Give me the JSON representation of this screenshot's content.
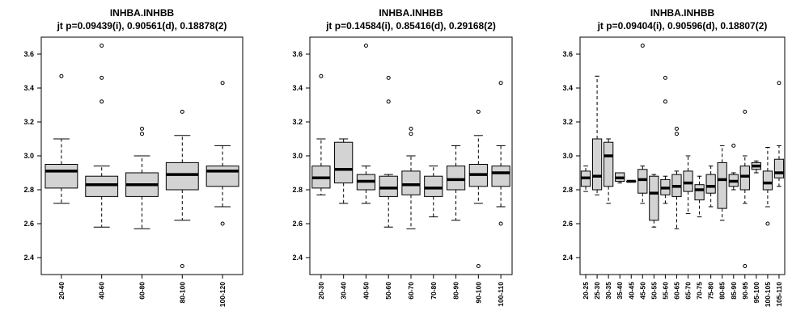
{
  "colors": {
    "box_fill": "#d3d3d3",
    "stroke": "#000000",
    "background": "#ffffff"
  },
  "chart_data": [
    {
      "type": "boxplot",
      "title": "INHBA.INHBB",
      "subtitle": "jt p=0.09439(i), 0.90561(d), 0.18878(2)",
      "ylim": [
        2.3,
        3.7
      ],
      "yticks": [
        "2.4",
        "2.6",
        "2.8",
        "3.0",
        "3.2",
        "3.4",
        "3.6"
      ],
      "categories": [
        "20-40",
        "40-60",
        "60-80",
        "80-100",
        "100-120"
      ],
      "boxes": [
        {
          "whisker_low": 2.72,
          "q1": 2.81,
          "median": 2.91,
          "q3": 2.95,
          "whisker_high": 3.1,
          "outliers": [
            3.47
          ]
        },
        {
          "whisker_low": 2.58,
          "q1": 2.76,
          "median": 2.83,
          "q3": 2.88,
          "whisker_high": 2.94,
          "outliers": [
            3.65,
            3.46,
            3.32
          ]
        },
        {
          "whisker_low": 2.57,
          "q1": 2.76,
          "median": 2.83,
          "q3": 2.9,
          "whisker_high": 3.0,
          "outliers": [
            3.16,
            3.13
          ]
        },
        {
          "whisker_low": 2.62,
          "q1": 2.8,
          "median": 2.89,
          "q3": 2.96,
          "whisker_high": 3.12,
          "outliers": [
            3.26,
            2.35
          ]
        },
        {
          "whisker_low": 2.7,
          "q1": 2.82,
          "median": 2.91,
          "q3": 2.94,
          "whisker_high": 3.06,
          "outliers": [
            3.43,
            2.6
          ]
        }
      ]
    },
    {
      "type": "boxplot",
      "title": "INHBA.INHBB",
      "subtitle": "jt p=0.14584(i), 0.85416(d), 0.29168(2)",
      "ylim": [
        2.3,
        3.7
      ],
      "yticks": [
        "2.4",
        "2.6",
        "2.8",
        "3.0",
        "3.2",
        "3.4",
        "3.6"
      ],
      "categories": [
        "20-30",
        "30-40",
        "40-50",
        "50-60",
        "60-70",
        "70-80",
        "80-90",
        "90-100",
        "100-110"
      ],
      "boxes": [
        {
          "whisker_low": 2.77,
          "q1": 2.81,
          "median": 2.87,
          "q3": 2.94,
          "whisker_high": 3.1,
          "outliers": [
            3.47
          ]
        },
        {
          "whisker_low": 2.72,
          "q1": 2.84,
          "median": 2.92,
          "q3": 3.08,
          "whisker_high": 3.1,
          "outliers": []
        },
        {
          "whisker_low": 2.72,
          "q1": 2.8,
          "median": 2.85,
          "q3": 2.89,
          "whisker_high": 2.94,
          "outliers": [
            3.65
          ]
        },
        {
          "whisker_low": 2.58,
          "q1": 2.76,
          "median": 2.81,
          "q3": 2.88,
          "whisker_high": 2.89,
          "outliers": [
            3.46,
            3.32
          ]
        },
        {
          "whisker_low": 2.57,
          "q1": 2.77,
          "median": 2.83,
          "q3": 2.91,
          "whisker_high": 3.0,
          "outliers": [
            3.16,
            3.13
          ]
        },
        {
          "whisker_low": 2.64,
          "q1": 2.76,
          "median": 2.81,
          "q3": 2.88,
          "whisker_high": 2.94,
          "outliers": []
        },
        {
          "whisker_low": 2.62,
          "q1": 2.8,
          "median": 2.86,
          "q3": 2.94,
          "whisker_high": 3.06,
          "outliers": []
        },
        {
          "whisker_low": 2.72,
          "q1": 2.82,
          "median": 2.89,
          "q3": 2.95,
          "whisker_high": 3.12,
          "outliers": [
            3.26,
            2.35
          ]
        },
        {
          "whisker_low": 2.7,
          "q1": 2.82,
          "median": 2.9,
          "q3": 2.94,
          "whisker_high": 3.06,
          "outliers": [
            3.43,
            2.6
          ]
        }
      ]
    },
    {
      "type": "boxplot",
      "title": "INHBA.INHBB",
      "subtitle": "jt p=0.09404(i), 0.90596(d), 0.18807(2)",
      "ylim": [
        2.3,
        3.7
      ],
      "yticks": [
        "2.4",
        "2.6",
        "2.8",
        "3.0",
        "3.2",
        "3.4",
        "3.6"
      ],
      "categories": [
        "20-25",
        "25-30",
        "30-35",
        "35-40",
        "40-45",
        "45-50",
        "50-55",
        "55-60",
        "60-65",
        "65-70",
        "70-75",
        "75-80",
        "80-85",
        "85-90",
        "90-95",
        "95-100",
        "100-105",
        "105-110"
      ],
      "boxes": [
        {
          "whisker_low": 2.79,
          "q1": 2.82,
          "median": 2.87,
          "q3": 2.91,
          "whisker_high": 2.94,
          "outliers": []
        },
        {
          "whisker_low": 2.77,
          "q1": 2.8,
          "median": 2.88,
          "q3": 3.1,
          "whisker_high": 3.47,
          "outliers": []
        },
        {
          "whisker_low": 2.72,
          "q1": 2.82,
          "median": 3.0,
          "q3": 3.08,
          "whisker_high": 3.1,
          "outliers": []
        },
        {
          "whisker_low": 2.84,
          "q1": 2.85,
          "median": 2.87,
          "q3": 2.9,
          "whisker_high": 2.9,
          "outliers": []
        },
        {
          "whisker_low": 2.85,
          "q1": 2.85,
          "median": 2.85,
          "q3": 2.85,
          "whisker_high": 2.85,
          "outliers": []
        },
        {
          "whisker_low": 2.72,
          "q1": 2.78,
          "median": 2.86,
          "q3": 2.92,
          "whisker_high": 2.94,
          "outliers": [
            3.65
          ]
        },
        {
          "whisker_low": 2.58,
          "q1": 2.62,
          "median": 2.78,
          "q3": 2.88,
          "whisker_high": 2.89,
          "outliers": []
        },
        {
          "whisker_low": 2.72,
          "q1": 2.77,
          "median": 2.81,
          "q3": 2.86,
          "whisker_high": 2.88,
          "outliers": [
            3.46,
            3.32
          ]
        },
        {
          "whisker_low": 2.57,
          "q1": 2.76,
          "median": 2.82,
          "q3": 2.89,
          "whisker_high": 2.91,
          "outliers": [
            3.16,
            3.13
          ]
        },
        {
          "whisker_low": 2.66,
          "q1": 2.79,
          "median": 2.84,
          "q3": 2.91,
          "whisker_high": 3.0,
          "outliers": []
        },
        {
          "whisker_low": 2.64,
          "q1": 2.74,
          "median": 2.8,
          "q3": 2.83,
          "whisker_high": 2.88,
          "outliers": []
        },
        {
          "whisker_low": 2.7,
          "q1": 2.78,
          "median": 2.82,
          "q3": 2.89,
          "whisker_high": 2.94,
          "outliers": []
        },
        {
          "whisker_low": 2.62,
          "q1": 2.69,
          "median": 2.86,
          "q3": 2.96,
          "whisker_high": 3.06,
          "outliers": []
        },
        {
          "whisker_low": 2.8,
          "q1": 2.82,
          "median": 2.85,
          "q3": 2.89,
          "whisker_high": 2.9,
          "outliers": [
            3.06
          ]
        },
        {
          "whisker_low": 2.72,
          "q1": 2.8,
          "median": 2.88,
          "q3": 2.94,
          "whisker_high": 3.0,
          "outliers": [
            3.26,
            2.35
          ]
        },
        {
          "whisker_low": 2.9,
          "q1": 2.92,
          "median": 2.94,
          "q3": 2.96,
          "whisker_high": 2.97,
          "outliers": []
        },
        {
          "whisker_low": 2.7,
          "q1": 2.8,
          "median": 2.84,
          "q3": 2.91,
          "whisker_high": 3.05,
          "outliers": [
            2.6
          ]
        },
        {
          "whisker_low": 2.82,
          "q1": 2.87,
          "median": 2.9,
          "q3": 2.98,
          "whisker_high": 3.06,
          "outliers": [
            3.43
          ]
        }
      ]
    }
  ]
}
